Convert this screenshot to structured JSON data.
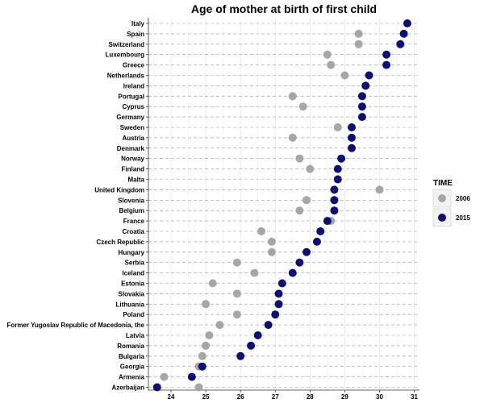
{
  "chart_data": {
    "type": "scatter",
    "title": "Age of mother at birth of first child",
    "xlabel": "",
    "ylabel": "",
    "xlim": [
      23.35,
      31.15
    ],
    "x_ticks": [
      24,
      25,
      26,
      27,
      28,
      29,
      30,
      31
    ],
    "categories": [
      "Italy",
      "Spain",
      "Switzerland",
      "Luxembourg",
      "Greece",
      "Netherlands",
      "Ireland",
      "Portugal",
      "Cyprus",
      "Germany",
      "Sweden",
      "Austria",
      "Denmark",
      "Norway",
      "Finland",
      "Malta",
      "United Kingdom",
      "Slovenia",
      "Belgium",
      "France",
      "Croatia",
      "Czech Republic",
      "Hungary",
      "Serbia",
      "Iceland",
      "Estonia",
      "Slovakia",
      "Lithuania",
      "Poland",
      "Former Yugoslav Republic of Macedonia, the",
      "Latvia",
      "Romania",
      "Bulgaria",
      "Georgia",
      "Armenia",
      "Azerbaijan"
    ],
    "grid": "dashed horizontal lines",
    "legend": {
      "title": "TIME",
      "position": "right"
    },
    "series": [
      {
        "name": "2006",
        "color": "#A6A6A6",
        "values": [
          null,
          29.4,
          29.4,
          28.5,
          28.6,
          29.0,
          null,
          27.5,
          27.8,
          null,
          28.8,
          27.5,
          null,
          27.7,
          28.0,
          null,
          30.0,
          27.9,
          27.7,
          28.6,
          26.6,
          26.9,
          26.9,
          25.9,
          26.4,
          25.2,
          25.9,
          25.0,
          25.9,
          25.4,
          25.1,
          25.0,
          24.9,
          24.8,
          23.8,
          24.8
        ]
      },
      {
        "name": "2015",
        "color": "#0D0D73",
        "values": [
          30.8,
          30.7,
          30.6,
          30.2,
          30.2,
          29.7,
          29.6,
          29.5,
          29.5,
          29.5,
          29.2,
          29.2,
          29.2,
          28.9,
          28.8,
          28.8,
          28.7,
          28.7,
          28.7,
          28.5,
          28.3,
          28.2,
          27.9,
          27.7,
          27.5,
          27.2,
          27.1,
          27.1,
          27.0,
          26.8,
          26.5,
          26.3,
          26.0,
          24.9,
          24.6,
          23.6
        ]
      }
    ]
  }
}
